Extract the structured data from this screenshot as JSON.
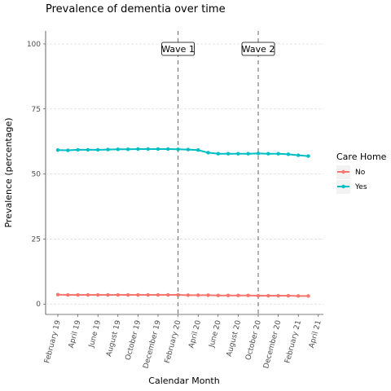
{
  "chart_data": {
    "type": "line",
    "title": "Prevalence of dementia over time",
    "xlabel": "Calendar Month",
    "ylabel": "Prevalence (percentage)",
    "ylim": [
      -4,
      105
    ],
    "yticks": [
      0,
      25,
      50,
      75,
      100
    ],
    "grid": true,
    "x_tick_labels": [
      "February 19",
      "April 19",
      "June 19",
      "August 19",
      "October 19",
      "December 19",
      "February 20",
      "April 20",
      "June 20",
      "August 20",
      "October 20",
      "December 20",
      "February 21",
      "April 21"
    ],
    "x": [
      "2019-02",
      "2019-03",
      "2019-04",
      "2019-05",
      "2019-06",
      "2019-07",
      "2019-08",
      "2019-09",
      "2019-10",
      "2019-11",
      "2019-12",
      "2020-01",
      "2020-02",
      "2020-03",
      "2020-04",
      "2020-05",
      "2020-06",
      "2020-07",
      "2020-08",
      "2020-09",
      "2020-10",
      "2020-11",
      "2020-12",
      "2021-01",
      "2021-02",
      "2021-03"
    ],
    "legend_title": "Care Home",
    "legend_position": "right",
    "series": [
      {
        "name": "No",
        "color": "#F8766D",
        "values": [
          3.6,
          3.5,
          3.5,
          3.5,
          3.5,
          3.5,
          3.5,
          3.5,
          3.5,
          3.5,
          3.5,
          3.5,
          3.5,
          3.4,
          3.4,
          3.4,
          3.3,
          3.3,
          3.3,
          3.3,
          3.2,
          3.2,
          3.2,
          3.2,
          3.1,
          3.1
        ]
      },
      {
        "name": "Yes",
        "color": "#00BFC4",
        "values": [
          59.2,
          59.1,
          59.3,
          59.3,
          59.3,
          59.4,
          59.5,
          59.5,
          59.6,
          59.6,
          59.6,
          59.6,
          59.5,
          59.4,
          59.2,
          58.2,
          57.8,
          57.8,
          57.8,
          57.8,
          57.9,
          57.8,
          57.8,
          57.6,
          57.2,
          56.9
        ]
      }
    ],
    "annotations": [
      {
        "label": "Wave 1",
        "x": "2020-02"
      },
      {
        "label": "Wave 2",
        "x": "2020-10"
      }
    ]
  }
}
